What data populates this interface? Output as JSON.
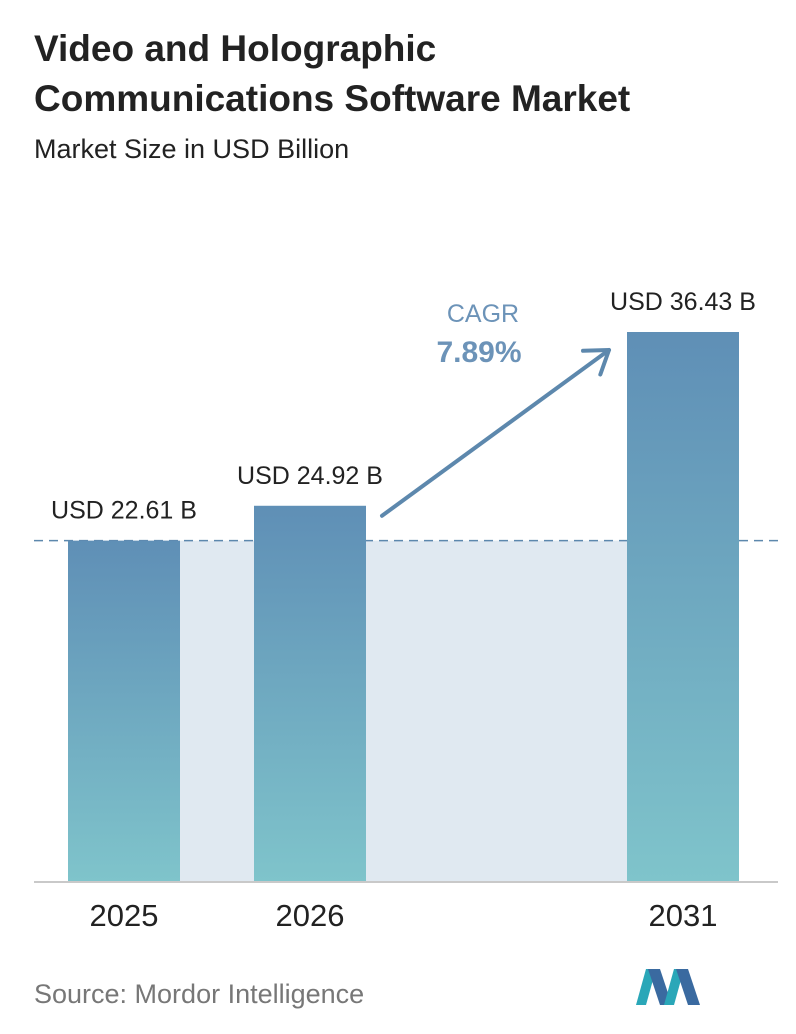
{
  "header": {
    "title_line1": "Video and Holographic",
    "title_line2": "Communications Software Market",
    "subtitle": "Market Size in USD Billion"
  },
  "footer": {
    "source": "Source: Mordor Intelligence"
  },
  "colors": {
    "bar_top": "#5f8fb6",
    "bar_bottom": "#7fc4cb",
    "band": "#e0e9f1",
    "arrow": "#5d88ad",
    "cagr_label": "#6c93b8"
  },
  "chart_data": {
    "type": "bar",
    "title": "Video and Holographic Communications Software Market",
    "subtitle": "Market Size in USD Billion",
    "categories": [
      "2025",
      "2026",
      "2031"
    ],
    "values": [
      22.61,
      24.92,
      36.43
    ],
    "data_labels": [
      "USD 22.61 B",
      "USD 24.92 B",
      "USD 36.43 B"
    ],
    "unit": "USD Billion",
    "ylim": [
      0,
      36.43
    ],
    "grid": false,
    "baseline_reference": 22.61,
    "annotation": {
      "label": "CAGR",
      "value": "7.89%"
    }
  }
}
